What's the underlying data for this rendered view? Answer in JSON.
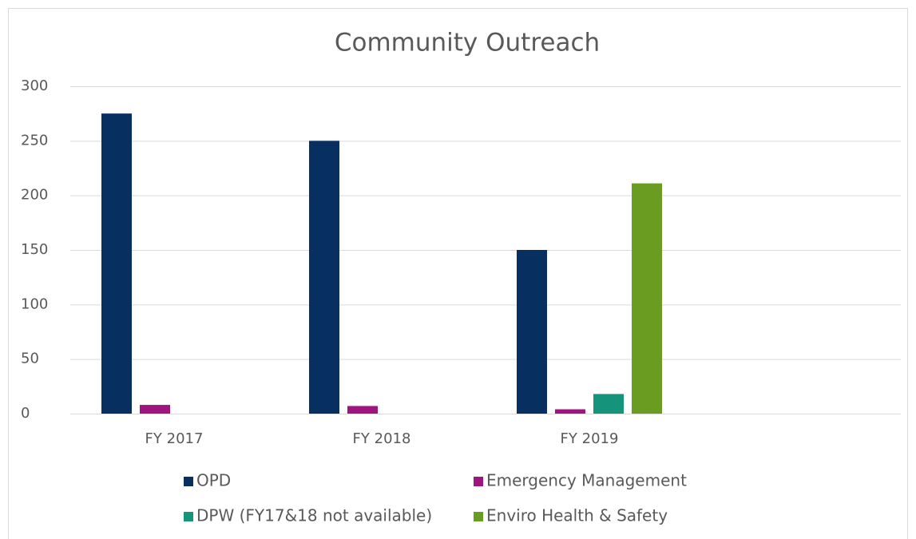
{
  "chart_data": {
    "type": "bar",
    "title": "Community Outreach",
    "categories": [
      "FY 2017",
      "FY 2018",
      "FY 2019",
      null
    ],
    "series": [
      {
        "name": "OPD",
        "color": "#072f5f",
        "values": [
          275,
          250,
          150,
          null
        ]
      },
      {
        "name": "Emergency Management",
        "color": "#a0147f",
        "values": [
          8,
          7,
          4,
          null
        ]
      },
      {
        "name": "DPW (FY17&18 not available)",
        "color": "#16937b",
        "values": [
          null,
          null,
          18,
          null
        ]
      },
      {
        "name": "Enviro Health & Safety",
        "color": "#6b9c22",
        "values": [
          null,
          null,
          211,
          null
        ]
      }
    ],
    "ylim": [
      0,
      300
    ],
    "yticks": [
      0,
      50,
      100,
      150,
      200,
      250,
      300
    ],
    "grid": true,
    "legend": "bottom"
  }
}
